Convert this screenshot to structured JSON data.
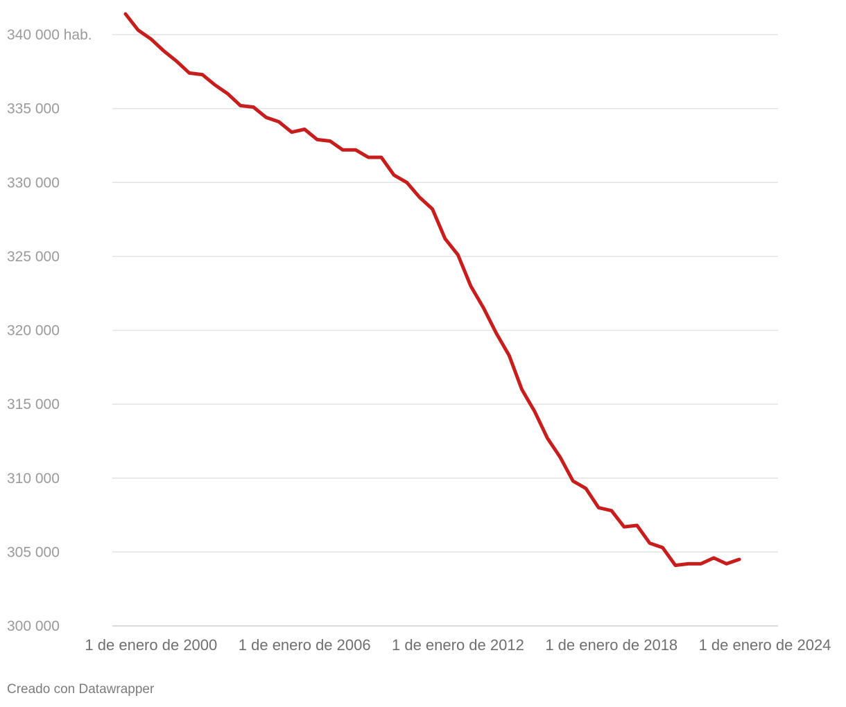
{
  "chart_data": {
    "type": "line",
    "title": "",
    "xlabel": "",
    "ylabel": "",
    "x": [
      "1999-01-01",
      "1999-07-01",
      "2000-01-01",
      "2000-07-01",
      "2001-01-01",
      "2001-07-01",
      "2002-01-01",
      "2002-07-01",
      "2003-01-01",
      "2003-07-01",
      "2004-01-01",
      "2004-07-01",
      "2005-01-01",
      "2005-07-01",
      "2006-01-01",
      "2006-07-01",
      "2007-01-01",
      "2007-07-01",
      "2008-01-01",
      "2008-07-01",
      "2009-01-01",
      "2009-07-01",
      "2010-01-01",
      "2010-07-01",
      "2011-01-01",
      "2011-07-01",
      "2012-01-01",
      "2012-07-01",
      "2013-01-01",
      "2013-07-01",
      "2014-01-01",
      "2014-07-01",
      "2015-01-01",
      "2015-07-01",
      "2016-01-01",
      "2016-07-01",
      "2017-01-01",
      "2017-07-01",
      "2018-01-01",
      "2018-07-01",
      "2019-01-01",
      "2019-07-01",
      "2020-01-01",
      "2020-07-01",
      "2021-01-01",
      "2021-07-01",
      "2022-01-01",
      "2022-07-01",
      "2023-01-01"
    ],
    "series": [
      {
        "color": "#c71e1d",
        "values": [
          341400,
          340300,
          339700,
          338900,
          338200,
          337400,
          337300,
          336600,
          336000,
          335200,
          335100,
          334400,
          334100,
          333400,
          333600,
          332900,
          332800,
          332200,
          332200,
          331700,
          331700,
          330500,
          330000,
          329000,
          328200,
          326200,
          325100,
          323000,
          321500,
          319800,
          318300,
          316000,
          314500,
          312700,
          311400,
          309800,
          309300,
          308000,
          307800,
          306700,
          306800,
          305600,
          305300,
          304100,
          304200,
          304200,
          304600,
          304200,
          304500
        ]
      }
    ],
    "ylim": [
      300000,
      340000
    ],
    "yticks": [
      300000,
      305000,
      310000,
      315000,
      320000,
      325000,
      330000,
      335000,
      340000
    ],
    "ytick_labels": [
      "300 000",
      "305 000",
      "310 000",
      "315 000",
      "320 000",
      "325 000",
      "330 000",
      "335 000",
      "340 000 hab."
    ],
    "xticks": [
      "2000-01-01",
      "2006-01-01",
      "2012-01-01",
      "2018-01-01",
      "2024-01-01"
    ],
    "xtick_labels": [
      "1 de enero de 2000",
      "1 de enero de 2006",
      "1 de enero de 2012",
      "1 de enero de 2018",
      "1 de enero de 2024"
    ],
    "grid": true
  },
  "credit": "Creado con Datawrapper"
}
